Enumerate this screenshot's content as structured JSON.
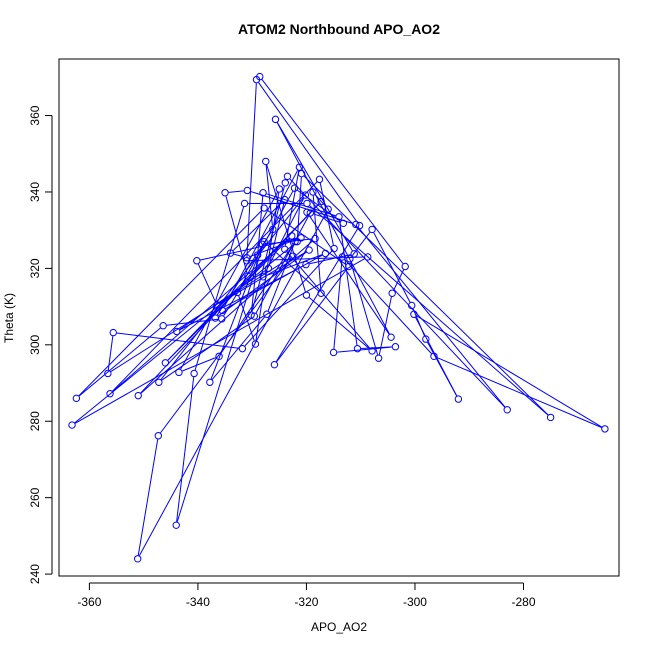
{
  "chart_data": {
    "type": "line",
    "title": "ATOM2 Northbound APO_AO2",
    "xlabel": "APO_AO2",
    "ylabel": "Theta (K)",
    "xlim": [
      -365.6,
      -262.4
    ],
    "ylim": [
      239.5,
      374.8
    ],
    "xticks": [
      -360,
      -340,
      -320,
      -300,
      -280
    ],
    "yticks": [
      240,
      260,
      280,
      300,
      320,
      340,
      360
    ],
    "color": "#0000ff",
    "marker": "open-circle",
    "grid": false,
    "series": [
      {
        "points": [
          [
            -328.6,
            370.2
          ],
          [
            -301.8,
            320.5
          ],
          [
            -304.2,
            313.5
          ],
          [
            -306.7,
            296.5
          ],
          [
            -312.0,
            322.5
          ],
          [
            -307.9,
            330.2
          ],
          [
            -300.6,
            310.3
          ],
          [
            -298.0,
            301.5
          ],
          [
            -292.0,
            285.8
          ],
          [
            -300.2,
            308.0
          ],
          [
            -265.0,
            278.0
          ],
          [
            -296.5,
            297.0
          ],
          [
            -313.4,
            323.0
          ],
          [
            -315.0,
            298.0
          ],
          [
            -303.6,
            299.5
          ],
          [
            -310.6,
            299.0
          ],
          [
            -314.0,
            333.5
          ],
          [
            -328.0,
            339.8
          ],
          [
            -329.0,
            323.5
          ],
          [
            -330.2,
            307.8
          ],
          [
            -323.9,
            342.4
          ],
          [
            -323.5,
            344.1
          ],
          [
            -283.0,
            283.0
          ],
          [
            -310.9,
            331.5
          ],
          [
            -330.9,
            340.4
          ],
          [
            -335.0,
            339.8
          ],
          [
            -330.8,
            318.0
          ],
          [
            -335.6,
            306.8
          ],
          [
            -346.4,
            305.0
          ],
          [
            -362.4,
            286.0
          ],
          [
            -327.8,
            335.8
          ],
          [
            -312.2,
            320.5
          ],
          [
            -325.9,
            294.8
          ],
          [
            -310.2,
            331.2
          ],
          [
            -329.2,
            369.4
          ],
          [
            -331.0,
            322.0
          ],
          [
            -308.7,
            323.0
          ],
          [
            -363.2,
            279.0
          ],
          [
            -321.7,
            327.0
          ],
          [
            -320.9,
            344.8
          ],
          [
            -275.0,
            281.0
          ],
          [
            -319.9,
            337.0
          ],
          [
            -331.4,
            337.0
          ],
          [
            -340.7,
            292.5
          ],
          [
            -344.0,
            252.8
          ],
          [
            -327.8,
            327.0
          ],
          [
            -317.3,
            313.5
          ],
          [
            -318.8,
            340.0
          ],
          [
            -316.0,
            335.5
          ],
          [
            -351.1,
            244.0
          ],
          [
            -347.3,
            276.2
          ],
          [
            -322.5,
            323.2
          ],
          [
            -356.6,
            292.5
          ],
          [
            -355.6,
            303.2
          ],
          [
            -331.8,
            299.0
          ],
          [
            -314.9,
            325.2
          ],
          [
            -317.6,
            343.3
          ],
          [
            -356.2,
            287.2
          ],
          [
            -322.7,
            328.5
          ],
          [
            -346.0,
            295.3
          ],
          [
            -317.3,
            337.5
          ],
          [
            -351.0,
            286.7
          ],
          [
            -318.4,
            327.8
          ],
          [
            -328.1,
            326.3
          ],
          [
            -337.8,
            290.2
          ],
          [
            -327.3,
            308.0
          ],
          [
            -322.1,
            327.0
          ],
          [
            -336.1,
            297.0
          ],
          [
            -343.5,
            292.8
          ],
          [
            -325.0,
            340.8
          ],
          [
            -329.4,
            300.2
          ],
          [
            -332.7,
            313.7
          ],
          [
            -322.2,
            341.0
          ],
          [
            -313.2,
            331.8
          ],
          [
            -319.3,
            334.5
          ],
          [
            -329.6,
            307.5
          ],
          [
            -347.2,
            290.2
          ],
          [
            -320.2,
            339.2
          ],
          [
            -328.0,
            317.8
          ],
          [
            -316.5,
            323.9
          ],
          [
            -335.5,
            309.0
          ],
          [
            -321.3,
            346.5
          ],
          [
            -324.0,
            325.0
          ],
          [
            -307.9,
            298.4
          ],
          [
            -320.0,
            313.0
          ],
          [
            -327.5,
            348.0
          ],
          [
            -326.2,
            330.2
          ],
          [
            -336.8,
            307.0
          ],
          [
            -319.5,
            324.8
          ],
          [
            -336.5,
            310.4
          ],
          [
            -340.2,
            322.0
          ],
          [
            -321.0,
            328.0
          ],
          [
            -331.0,
            322.8
          ],
          [
            -334.0,
            324.0
          ],
          [
            -324.0,
            338.0
          ],
          [
            -327.0,
            320.0
          ],
          [
            -343.9,
            303.5
          ],
          [
            -320.1,
            321.0
          ],
          [
            -311.2,
            323.8
          ],
          [
            -325.7,
            359.0
          ],
          [
            -304.4,
            302.0
          ],
          [
            -319.9,
            334.7
          ]
        ]
      }
    ]
  }
}
